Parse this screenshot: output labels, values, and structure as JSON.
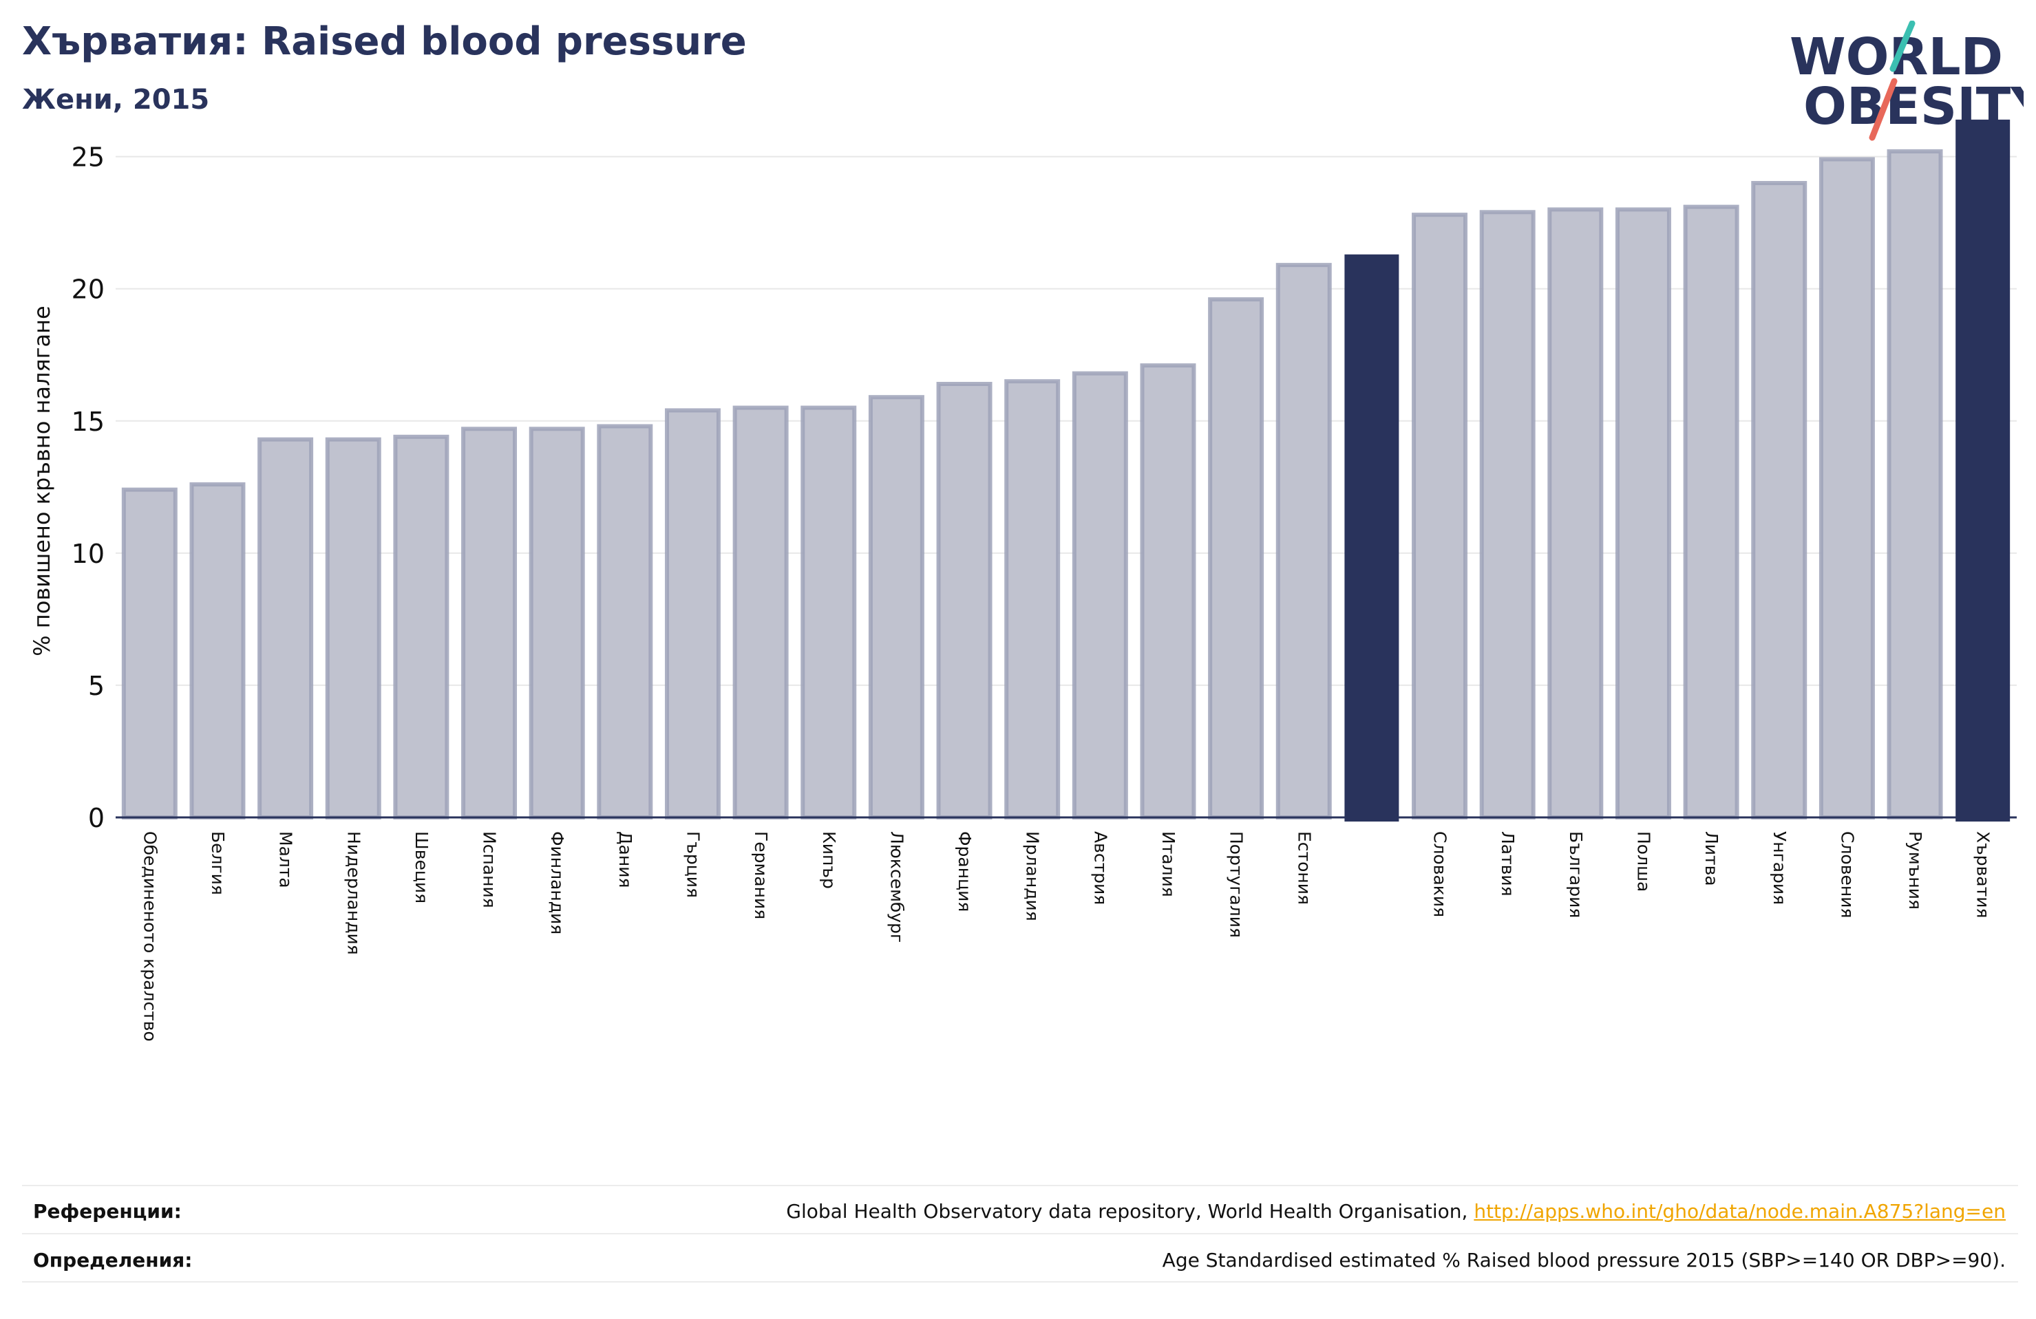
{
  "header": {
    "title": "Хърватия: Raised blood pressure",
    "subtitle": "Жени, 2015"
  },
  "logo": {
    "line1": "WORLD",
    "line2": "OBESITY"
  },
  "colors": {
    "highlight": "#29335c",
    "bar_fill": "#c0c2cf",
    "bar_stroke": "#9ea2b8",
    "grid": "#e8e8e8",
    "link": "#f0a500",
    "logo_teal": "#3bbfb1",
    "logo_red": "#e8685a"
  },
  "chart_data": {
    "type": "bar",
    "ylabel": "% повишено кръвно налягане",
    "ylim": [
      0,
      26.5
    ],
    "yticks": [
      0,
      5,
      10,
      15,
      20,
      25
    ],
    "grid": true,
    "categories": [
      "Обединеното кралство",
      "Белгия",
      "Малта",
      "Нидерландия",
      "Швеция",
      "Испания",
      "Финландия",
      "Дания",
      "Гърция",
      "Германия",
      "Кипър",
      "Люксембург",
      "Франция",
      "Ирландия",
      "Австрия",
      "Италия",
      "Португалия",
      "Естония",
      "",
      "Словакия",
      "Латвия",
      "България",
      "Полша",
      "Литва",
      "Унгария",
      "Словения",
      "Румъния",
      "Хърватия"
    ],
    "values": [
      12.4,
      12.6,
      14.3,
      14.3,
      14.4,
      14.7,
      14.7,
      14.8,
      15.4,
      15.5,
      15.5,
      15.9,
      16.4,
      16.5,
      16.8,
      17.1,
      19.6,
      20.9,
      21.3,
      22.8,
      22.9,
      23.0,
      23.0,
      23.1,
      24.0,
      24.9,
      25.2,
      26.4
    ],
    "highlighted": [
      18,
      27
    ]
  },
  "footer": {
    "references_label": "Референции:",
    "references_text": "Global Health Observatory data repository, World Health Organisation, ",
    "references_link": "http://apps.who.int/gho/data/node.main.A875?lang=en",
    "definitions_label": "Определения:",
    "definitions_text": "Age Standardised estimated % Raised blood pressure 2015 (SBP>=140 OR DBP>=90)."
  }
}
